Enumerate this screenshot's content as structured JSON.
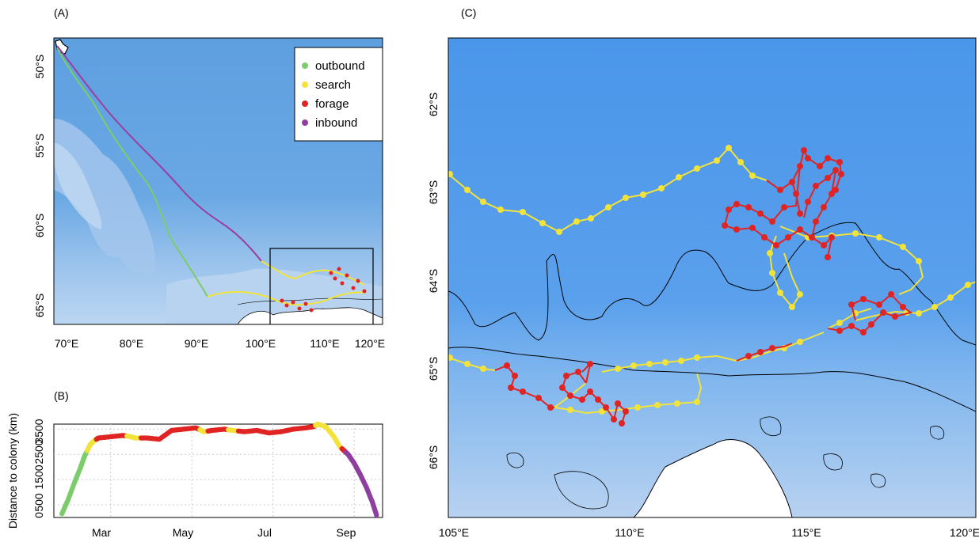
{
  "panels": {
    "a": {
      "label": "(A)"
    },
    "b": {
      "label": "(B)"
    },
    "c": {
      "label": "(C)"
    }
  },
  "legend": {
    "items": [
      {
        "label": "outbound",
        "color": "#7ccc6c"
      },
      {
        "label": "search",
        "color": "#f2e33b"
      },
      {
        "label": "forage",
        "color": "#e02424"
      },
      {
        "label": "inbound",
        "color": "#8e3fa0"
      }
    ]
  },
  "map_a": {
    "lon_ticks": [
      "70°E",
      "80°E",
      "90°E",
      "100°E",
      "110°E",
      "120°E"
    ],
    "lat_ticks": [
      "50°S",
      "55°S",
      "60°S",
      "65°S"
    ]
  },
  "map_c": {
    "lon_ticks": [
      "105°E",
      "110°E",
      "115°E",
      "120°E"
    ],
    "lat_ticks": [
      "62°S",
      "63°S",
      "64°S",
      "65°S",
      "66°S"
    ]
  },
  "chart_data": {
    "type": "scatter",
    "ylabel": "Distance to colony (km)",
    "x_ticks": [
      "Mar",
      "May",
      "Jul",
      "Sep"
    ],
    "y_ticks": [
      "0",
      "500",
      "1500",
      "2500",
      "3500"
    ],
    "ylim": [
      0,
      3700
    ],
    "x_unit": "month",
    "xlim": [
      1.6,
      9.7
    ],
    "grid": true,
    "series": [
      {
        "name": "outbound",
        "x": [
          1.8,
          1.95,
          2.1,
          2.25,
          2.35
        ],
        "y": [
          150,
          700,
          1350,
          1950,
          2400
        ]
      },
      {
        "name": "search",
        "x": [
          2.5,
          2.6,
          3.5,
          3.6,
          5.3,
          6.0,
          8.1,
          8.3,
          8.5,
          8.65
        ],
        "y": [
          2900,
          3050,
          3200,
          3150,
          3400,
          3450,
          3700,
          3600,
          3200,
          2800
        ]
      },
      {
        "name": "forage",
        "x": [
          2.7,
          3.0,
          3.3,
          3.9,
          4.2,
          4.5,
          4.8,
          5.1,
          5.5,
          5.8,
          6.3,
          6.6,
          6.9,
          7.2,
          7.5,
          7.8,
          8.0,
          8.75
        ],
        "y": [
          3150,
          3200,
          3250,
          3150,
          3100,
          3450,
          3500,
          3550,
          3450,
          3500,
          3400,
          3450,
          3350,
          3400,
          3500,
          3550,
          3600,
          2650
        ]
      },
      {
        "name": "inbound",
        "x": [
          8.85,
          9.0,
          9.15,
          9.3,
          9.45,
          9.55
        ],
        "y": [
          2500,
          2150,
          1700,
          1200,
          600,
          100
        ]
      }
    ]
  }
}
